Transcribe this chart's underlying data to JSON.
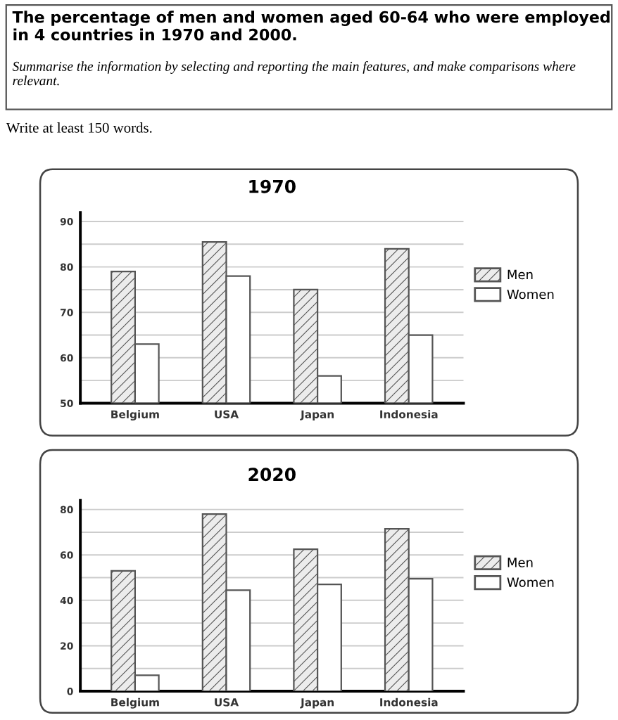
{
  "chart_data": [
    {
      "type": "bar",
      "title": "1970",
      "annotations": [
        "The percentage of men and women aged 60-64 who were employed in 4 countries in 1970 and 2000.",
        "Summarise the information by selecting and reporting the main features, and make comparisons where relevant.",
        "Write at least 150 words."
      ],
      "categories": [
        "Belgium",
        "USA",
        "Japan",
        "Indonesia"
      ],
      "series": [
        {
          "name": "Men",
          "color": "#555555",
          "values": [
            79,
            85.5,
            75,
            84
          ]
        },
        {
          "name": "Women",
          "color": "#ffffff",
          "values": [
            63,
            78,
            56,
            65
          ]
        }
      ],
      "ylim": [
        50,
        92
      ],
      "yticks": [
        50,
        {
          "value": 55,
          "label": null
        },
        60,
        {
          "value": 65,
          "label": null
        },
        70,
        {
          "value": 75,
          "label": null
        },
        80,
        {
          "value": 85,
          "label": null
        },
        90
      ],
      "grid": "y",
      "legend": "right"
    },
    {
      "type": "bar",
      "title": "2020",
      "categories": [
        "Belgium",
        "USA",
        "Japan",
        "Indonesia"
      ],
      "series": [
        {
          "name": "Men",
          "color": "#555555",
          "values": [
            53,
            78,
            62.5,
            71.5
          ]
        },
        {
          "name": "Women",
          "color": "#ffffff",
          "values": [
            7,
            44.5,
            47,
            49.5
          ]
        }
      ],
      "ylim": [
        0,
        84
      ],
      "yticks": [
        0,
        {
          "value": 10,
          "label": null
        },
        20,
        {
          "value": 30,
          "label": null
        },
        40,
        {
          "value": 50,
          "label": null
        },
        60,
        {
          "value": 70,
          "label": null
        },
        80
      ],
      "grid": "y",
      "legend": "right"
    }
  ]
}
